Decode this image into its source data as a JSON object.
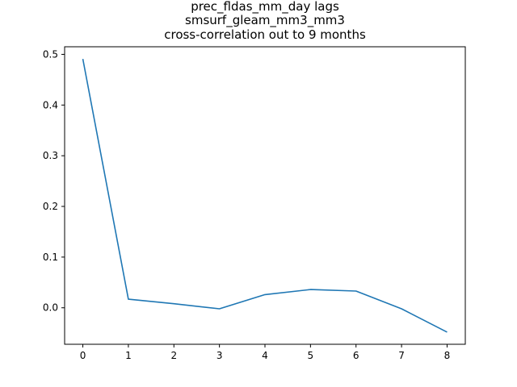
{
  "chart_data": {
    "type": "line",
    "title_lines": [
      "prec_fldas_mm_day lags",
      "smsurf_gleam_mm3_mm3",
      "cross-correlation out to 9 months"
    ],
    "xlabel": "",
    "ylabel": "",
    "x": [
      0,
      1,
      2,
      3,
      4,
      5,
      6,
      7,
      8
    ],
    "series": [
      {
        "values": [
          0.491,
          0.017,
          0.008,
          -0.002,
          0.026,
          0.036,
          0.033,
          -0.002,
          -0.048
        ],
        "color": "#1f77b4"
      }
    ],
    "xlim": [
      -0.4,
      8.4
    ],
    "ylim": [
      -0.072,
      0.515
    ],
    "xticks": [
      0,
      1,
      2,
      3,
      4,
      5,
      6,
      7,
      8
    ],
    "yticks": [
      0.0,
      0.1,
      0.2,
      0.3,
      0.4,
      0.5
    ],
    "ytick_labels": [
      "0.0",
      "0.1",
      "0.2",
      "0.3",
      "0.4",
      "0.5"
    ],
    "grid": false,
    "legend": "none"
  }
}
